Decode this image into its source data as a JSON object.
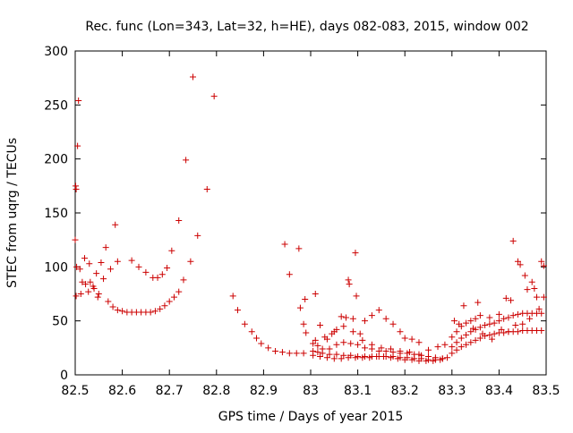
{
  "chart_data": {
    "type": "scatter",
    "title": "Rec. func (Lon=343, Lat=32, h=HE), days 082-083, 2015, window 002",
    "xlabel": "GPS time / Days of year 2015",
    "ylabel": "STEC from uqrg / TECUs",
    "xlim": [
      82.5,
      83.5
    ],
    "ylim": [
      0,
      300
    ],
    "x_ticks": [
      "82.5",
      "82.6",
      "82.7",
      "82.8",
      "82.9",
      "83",
      "83.1",
      "83.2",
      "83.3",
      "83.4",
      "83.5"
    ],
    "y_ticks": [
      "0",
      "50",
      "100",
      "150",
      "200",
      "250",
      "300"
    ],
    "grid": false,
    "legend": "none",
    "marker": "plus",
    "color": "#cc0000",
    "series": [
      {
        "points": [
          [
            82.5,
            125
          ],
          [
            82.501,
            175
          ],
          [
            82.502,
            172
          ],
          [
            82.505,
            212
          ],
          [
            82.507,
            254
          ],
          [
            82.503,
            100
          ],
          [
            82.51,
            98
          ],
          [
            82.52,
            108
          ],
          [
            82.53,
            103
          ],
          [
            82.545,
            94
          ],
          [
            82.555,
            104
          ],
          [
            82.565,
            118
          ],
          [
            82.575,
            98
          ],
          [
            82.585,
            139
          ],
          [
            82.59,
            105
          ],
          [
            82.502,
            73
          ],
          [
            82.512,
            75
          ],
          [
            82.522,
            84
          ],
          [
            82.532,
            86
          ],
          [
            82.54,
            80
          ],
          [
            82.55,
            75
          ],
          [
            82.56,
            89
          ],
          [
            82.57,
            68
          ],
          [
            82.515,
            86
          ],
          [
            82.528,
            77
          ],
          [
            82.538,
            82
          ],
          [
            82.548,
            72
          ],
          [
            82.58,
            63
          ],
          [
            82.59,
            60
          ],
          [
            82.6,
            59
          ],
          [
            82.61,
            58
          ],
          [
            82.62,
            58
          ],
          [
            82.63,
            58
          ],
          [
            82.64,
            58
          ],
          [
            82.65,
            58
          ],
          [
            82.66,
            58
          ],
          [
            82.67,
            59
          ],
          [
            82.68,
            61
          ],
          [
            82.69,
            64
          ],
          [
            82.7,
            68
          ],
          [
            82.71,
            72
          ],
          [
            82.72,
            77
          ],
          [
            82.73,
            88
          ],
          [
            82.745,
            105
          ],
          [
            82.76,
            129
          ],
          [
            82.78,
            172
          ],
          [
            82.795,
            258
          ],
          [
            82.75,
            276
          ],
          [
            82.735,
            199
          ],
          [
            82.72,
            143
          ],
          [
            82.705,
            115
          ],
          [
            82.695,
            99
          ],
          [
            82.685,
            93
          ],
          [
            82.675,
            90
          ],
          [
            82.665,
            90
          ],
          [
            82.65,
            95
          ],
          [
            82.635,
            100
          ],
          [
            82.62,
            106
          ],
          [
            82.835,
            73
          ],
          [
            82.845,
            60
          ],
          [
            82.86,
            47
          ],
          [
            82.875,
            40
          ],
          [
            82.885,
            34
          ],
          [
            82.895,
            29
          ],
          [
            82.91,
            25
          ],
          [
            82.925,
            22
          ],
          [
            82.94,
            21
          ],
          [
            82.955,
            20
          ],
          [
            82.97,
            20
          ],
          [
            82.985,
            20
          ],
          [
            82.945,
            121
          ],
          [
            82.955,
            93
          ],
          [
            82.975,
            117
          ],
          [
            82.978,
            62
          ],
          [
            82.985,
            47
          ],
          [
            82.988,
            70
          ],
          [
            82.99,
            39
          ],
          [
            83.01,
            75
          ],
          [
            83.02,
            46
          ],
          [
            83.035,
            33
          ],
          [
            83.045,
            38
          ],
          [
            83.055,
            42
          ],
          [
            83.065,
            54
          ],
          [
            83.075,
            53
          ],
          [
            83.08,
            88
          ],
          [
            83.082,
            84
          ],
          [
            83.09,
            52
          ],
          [
            83.095,
            113
          ],
          [
            83.097,
            73
          ],
          [
            83.105,
            38
          ],
          [
            83.115,
            50
          ],
          [
            83.13,
            55
          ],
          [
            83.145,
            60
          ],
          [
            83.16,
            52
          ],
          [
            83.175,
            47
          ],
          [
            83.19,
            40
          ],
          [
            83.2,
            34
          ],
          [
            83.215,
            33
          ],
          [
            83.23,
            30
          ],
          [
            83.005,
            29
          ],
          [
            83.015,
            27
          ],
          [
            83.025,
            24
          ],
          [
            83.04,
            24
          ],
          [
            83.055,
            28
          ],
          [
            83.07,
            30
          ],
          [
            83.085,
            29
          ],
          [
            83.1,
            28
          ],
          [
            83.115,
            25
          ],
          [
            83.13,
            24
          ],
          [
            83.145,
            22
          ],
          [
            83.16,
            22
          ],
          [
            83.175,
            21
          ],
          [
            83.19,
            20
          ],
          [
            83.205,
            20
          ],
          [
            83.22,
            19
          ],
          [
            83.235,
            18
          ],
          [
            83.25,
            17
          ],
          [
            83.265,
            16
          ],
          [
            83.28,
            15
          ],
          [
            83.005,
            22
          ],
          [
            83.015,
            21
          ],
          [
            83.025,
            20
          ],
          [
            83.04,
            19
          ],
          [
            83.055,
            19
          ],
          [
            83.07,
            18
          ],
          [
            83.085,
            18
          ],
          [
            83.1,
            17
          ],
          [
            83.115,
            17
          ],
          [
            83.13,
            17
          ],
          [
            83.145,
            17
          ],
          [
            83.16,
            17
          ],
          [
            83.175,
            17
          ],
          [
            83.19,
            16
          ],
          [
            83.205,
            16
          ],
          [
            83.22,
            15
          ],
          [
            83.235,
            15
          ],
          [
            83.25,
            14
          ],
          [
            83.265,
            14
          ],
          [
            83.28,
            15
          ],
          [
            83.01,
            32
          ],
          [
            83.03,
            35
          ],
          [
            83.05,
            40
          ],
          [
            83.07,
            45
          ],
          [
            83.09,
            40
          ],
          [
            83.11,
            32
          ],
          [
            83.13,
            28
          ],
          [
            83.15,
            25
          ],
          [
            83.17,
            24
          ],
          [
            83.19,
            22
          ],
          [
            83.21,
            21
          ],
          [
            83.23,
            19
          ],
          [
            83.25,
            23
          ],
          [
            83.27,
            26
          ],
          [
            83.285,
            28
          ],
          [
            83.005,
            18
          ],
          [
            83.02,
            17
          ],
          [
            83.035,
            16
          ],
          [
            83.05,
            15
          ],
          [
            83.065,
            15
          ],
          [
            83.08,
            16
          ],
          [
            83.095,
            16
          ],
          [
            83.11,
            16
          ],
          [
            83.125,
            16
          ],
          [
            83.14,
            17
          ],
          [
            83.155,
            17
          ],
          [
            83.17,
            16
          ],
          [
            83.185,
            15
          ],
          [
            83.2,
            14
          ],
          [
            83.215,
            14
          ],
          [
            83.23,
            13
          ],
          [
            83.245,
            13
          ],
          [
            83.26,
            13
          ],
          [
            83.275,
            14
          ],
          [
            83.29,
            16
          ],
          [
            83.3,
            20
          ],
          [
            83.31,
            23
          ],
          [
            83.32,
            26
          ],
          [
            83.33,
            28
          ],
          [
            83.34,
            30
          ],
          [
            83.35,
            32
          ],
          [
            83.36,
            34
          ],
          [
            83.37,
            36
          ],
          [
            83.38,
            37
          ],
          [
            83.39,
            38
          ],
          [
            83.4,
            39
          ],
          [
            83.41,
            39
          ],
          [
            83.42,
            40
          ],
          [
            83.43,
            40
          ],
          [
            83.44,
            40
          ],
          [
            83.45,
            41
          ],
          [
            83.46,
            41
          ],
          [
            83.47,
            41
          ],
          [
            83.48,
            41
          ],
          [
            83.49,
            41
          ],
          [
            83.3,
            26
          ],
          [
            83.31,
            30
          ],
          [
            83.32,
            34
          ],
          [
            83.33,
            37
          ],
          [
            83.34,
            40
          ],
          [
            83.35,
            42
          ],
          [
            83.36,
            44
          ],
          [
            83.37,
            46
          ],
          [
            83.38,
            47
          ],
          [
            83.39,
            48
          ],
          [
            83.4,
            50
          ],
          [
            83.41,
            52
          ],
          [
            83.42,
            53
          ],
          [
            83.43,
            55
          ],
          [
            83.44,
            56
          ],
          [
            83.45,
            57
          ],
          [
            83.46,
            57
          ],
          [
            83.47,
            57
          ],
          [
            83.48,
            57
          ],
          [
            83.49,
            57
          ],
          [
            83.3,
            35
          ],
          [
            83.31,
            40
          ],
          [
            83.32,
            45
          ],
          [
            83.33,
            48
          ],
          [
            83.34,
            50
          ],
          [
            83.35,
            52
          ],
          [
            83.355,
            67
          ],
          [
            83.36,
            55
          ],
          [
            83.38,
            53
          ],
          [
            83.4,
            56
          ],
          [
            83.415,
            71
          ],
          [
            83.425,
            69
          ],
          [
            83.43,
            124
          ],
          [
            83.44,
            105
          ],
          [
            83.445,
            102
          ],
          [
            83.455,
            92
          ],
          [
            83.46,
            79
          ],
          [
            83.47,
            86
          ],
          [
            83.475,
            80
          ],
          [
            83.48,
            72
          ],
          [
            83.49,
            105
          ],
          [
            83.495,
            101
          ],
          [
            83.495,
            72
          ],
          [
            83.305,
            50
          ],
          [
            83.315,
            47
          ],
          [
            83.325,
            64
          ],
          [
            83.345,
            43
          ],
          [
            83.365,
            38
          ],
          [
            83.385,
            33
          ],
          [
            83.405,
            42
          ],
          [
            83.42,
            40
          ],
          [
            83.435,
            46
          ],
          [
            83.45,
            47
          ],
          [
            83.465,
            52
          ],
          [
            83.485,
            61
          ]
        ]
      }
    ]
  }
}
